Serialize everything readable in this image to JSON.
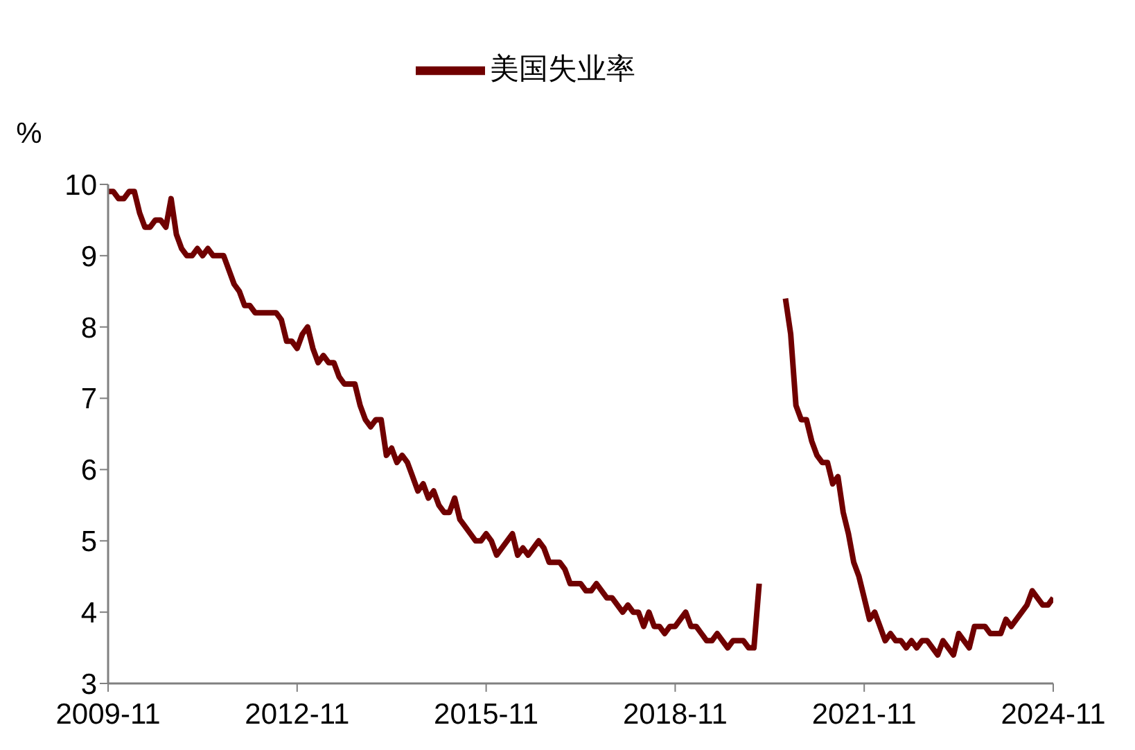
{
  "chart_data": {
    "type": "line",
    "ylabel": "%",
    "legend": "top",
    "marker": "none",
    "grid": false,
    "xlim": [
      "2009-11",
      "2024-11"
    ],
    "xticks": [
      "2009-11",
      "2012-11",
      "2015-11",
      "2018-11",
      "2021-11",
      "2024-11"
    ],
    "ylim": [
      3,
      10
    ],
    "yticks": [
      3,
      4,
      5,
      6,
      7,
      8,
      9,
      10
    ],
    "x": [
      "2009-11",
      "2009-12",
      "2010-01",
      "2010-02",
      "2010-03",
      "2010-04",
      "2010-05",
      "2010-06",
      "2010-07",
      "2010-08",
      "2010-09",
      "2010-10",
      "2010-11",
      "2010-12",
      "2011-01",
      "2011-02",
      "2011-03",
      "2011-04",
      "2011-05",
      "2011-06",
      "2011-07",
      "2011-08",
      "2011-09",
      "2011-10",
      "2011-11",
      "2011-12",
      "2012-01",
      "2012-02",
      "2012-03",
      "2012-04",
      "2012-05",
      "2012-06",
      "2012-07",
      "2012-08",
      "2012-09",
      "2012-10",
      "2012-11",
      "2012-12",
      "2013-01",
      "2013-02",
      "2013-03",
      "2013-04",
      "2013-05",
      "2013-06",
      "2013-07",
      "2013-08",
      "2013-09",
      "2013-10",
      "2013-11",
      "2013-12",
      "2014-01",
      "2014-02",
      "2014-03",
      "2014-04",
      "2014-05",
      "2014-06",
      "2014-07",
      "2014-08",
      "2014-09",
      "2014-10",
      "2014-11",
      "2014-12",
      "2015-01",
      "2015-02",
      "2015-03",
      "2015-04",
      "2015-05",
      "2015-06",
      "2015-07",
      "2015-08",
      "2015-09",
      "2015-10",
      "2015-11",
      "2015-12",
      "2016-01",
      "2016-02",
      "2016-03",
      "2016-04",
      "2016-05",
      "2016-06",
      "2016-07",
      "2016-08",
      "2016-09",
      "2016-10",
      "2016-11",
      "2016-12",
      "2017-01",
      "2017-02",
      "2017-03",
      "2017-04",
      "2017-05",
      "2017-06",
      "2017-07",
      "2017-08",
      "2017-09",
      "2017-10",
      "2017-11",
      "2017-12",
      "2018-01",
      "2018-02",
      "2018-03",
      "2018-04",
      "2018-05",
      "2018-06",
      "2018-07",
      "2018-08",
      "2018-09",
      "2018-10",
      "2018-11",
      "2018-12",
      "2019-01",
      "2019-02",
      "2019-03",
      "2019-04",
      "2019-05",
      "2019-06",
      "2019-07",
      "2019-08",
      "2019-09",
      "2019-10",
      "2019-11",
      "2019-12",
      "2020-01",
      "2020-02",
      "2020-03",
      "2020-04",
      "2020-05",
      "2020-06",
      "2020-07",
      "2020-08",
      "2020-09",
      "2020-10",
      "2020-11",
      "2020-12",
      "2021-01",
      "2021-02",
      "2021-03",
      "2021-04",
      "2021-05",
      "2021-06",
      "2021-07",
      "2021-08",
      "2021-09",
      "2021-10",
      "2021-11",
      "2021-12",
      "2022-01",
      "2022-02",
      "2022-03",
      "2022-04",
      "2022-05",
      "2022-06",
      "2022-07",
      "2022-08",
      "2022-09",
      "2022-10",
      "2022-11",
      "2022-12",
      "2023-01",
      "2023-02",
      "2023-03",
      "2023-04",
      "2023-05",
      "2023-06",
      "2023-07",
      "2023-08",
      "2023-09",
      "2023-10",
      "2023-11",
      "2023-12",
      "2024-01",
      "2024-02",
      "2024-03",
      "2024-04",
      "2024-05",
      "2024-06",
      "2024-07",
      "2024-08",
      "2024-09",
      "2024-10",
      "2024-11"
    ],
    "series": [
      {
        "name": "美国失业率",
        "color": "#700000",
        "values": [
          9.9,
          9.9,
          9.8,
          9.8,
          9.9,
          9.9,
          9.6,
          9.4,
          9.4,
          9.5,
          9.5,
          9.4,
          9.8,
          9.3,
          9.1,
          9.0,
          9.0,
          9.1,
          9.0,
          9.1,
          9.0,
          9.0,
          9.0,
          8.8,
          8.6,
          8.5,
          8.3,
          8.3,
          8.2,
          8.2,
          8.2,
          8.2,
          8.2,
          8.1,
          7.8,
          7.8,
          7.7,
          7.9,
          8.0,
          7.7,
          7.5,
          7.6,
          7.5,
          7.5,
          7.3,
          7.2,
          7.2,
          7.2,
          6.9,
          6.7,
          6.6,
          6.7,
          6.7,
          6.2,
          6.3,
          6.1,
          6.2,
          6.1,
          5.9,
          5.7,
          5.8,
          5.6,
          5.7,
          5.5,
          5.4,
          5.4,
          5.6,
          5.3,
          5.2,
          5.1,
          5.0,
          5.0,
          5.1,
          5.0,
          4.8,
          4.9,
          5.0,
          5.1,
          4.8,
          4.9,
          4.8,
          4.9,
          5.0,
          4.9,
          4.7,
          4.7,
          4.7,
          4.6,
          4.4,
          4.4,
          4.4,
          4.3,
          4.3,
          4.4,
          4.3,
          4.2,
          4.2,
          4.1,
          4.0,
          4.1,
          4.0,
          4.0,
          3.8,
          4.0,
          3.8,
          3.8,
          3.7,
          3.8,
          3.8,
          3.9,
          4.0,
          3.8,
          3.8,
          3.7,
          3.6,
          3.6,
          3.7,
          3.6,
          3.5,
          3.6,
          3.6,
          3.6,
          3.5,
          3.5,
          4.4,
          null,
          null,
          null,
          null,
          8.4,
          7.9,
          6.9,
          6.7,
          6.7,
          6.4,
          6.2,
          6.1,
          6.1,
          5.8,
          5.9,
          5.4,
          5.1,
          4.7,
          4.5,
          4.2,
          3.9,
          4.0,
          3.8,
          3.6,
          3.7,
          3.6,
          3.6,
          3.5,
          3.6,
          3.5,
          3.6,
          3.6,
          3.5,
          3.4,
          3.6,
          3.5,
          3.4,
          3.7,
          3.6,
          3.5,
          3.8,
          3.8,
          3.8,
          3.7,
          3.7,
          3.7,
          3.9,
          3.8,
          3.9,
          4.0,
          4.1,
          4.3,
          4.2,
          4.1,
          4.1,
          4.2
        ]
      }
    ]
  }
}
